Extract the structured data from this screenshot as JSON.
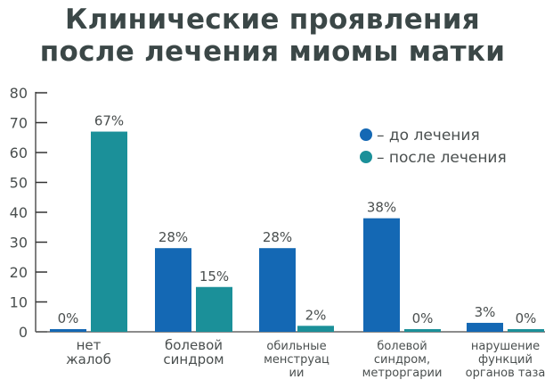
{
  "chart_data": {
    "type": "bar",
    "title": [
      "Клинические проявления",
      "после лечения миомы матки"
    ],
    "categories": [
      [
        "нет",
        "жалоб"
      ],
      [
        "болевой",
        "синдром"
      ],
      [
        "обильные",
        "менструац",
        "ии"
      ],
      [
        "болевой",
        "синдром,",
        "метроргарии"
      ],
      [
        "нарушение",
        "функций",
        "органов таза"
      ]
    ],
    "series": [
      {
        "name": "– до лечения",
        "color": "#1468b4",
        "values": [
          0,
          28,
          28,
          38,
          3
        ],
        "labels": [
          "0%",
          "28%",
          "28%",
          "38%",
          "3%"
        ]
      },
      {
        "name": "– после лечения",
        "color": "#1b9099",
        "values": [
          67,
          15,
          2,
          0,
          0
        ],
        "labels": [
          "67%",
          "15%",
          "2%",
          "0%",
          "0%"
        ]
      }
    ],
    "ylim": [
      0,
      80
    ],
    "yticks": [
      0,
      10,
      20,
      30,
      40,
      50,
      60,
      70,
      80
    ],
    "xlabel": "",
    "ylabel": "",
    "grid": false,
    "legend": "top-right"
  }
}
